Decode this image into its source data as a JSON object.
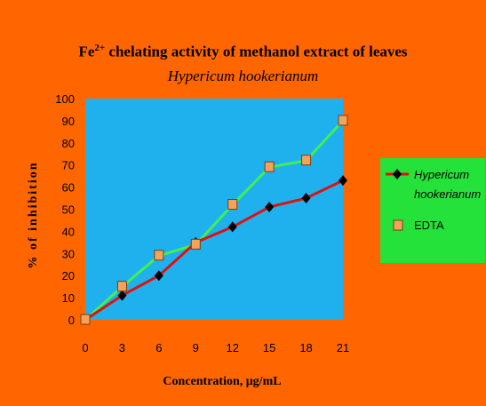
{
  "colors": {
    "outer_background": "#ff6600",
    "plot_background": "#1eb1ee",
    "legend_background": "#24e23a",
    "series_hypericum": "#e01010",
    "series_edta": "#44ee55",
    "marker_hypericum": "#000000",
    "marker_edta_fill": "#f5a35a"
  },
  "chart_data": {
    "type": "line",
    "title_prefix": "Fe",
    "title_superscript": "2+",
    "title_rest": " chelating activity of methanol extract of leaves",
    "subtitle": "Hypericum hookerianum",
    "xlabel": "Concentration, μg/mL",
    "ylabel": "% of inhibition",
    "x": [
      0,
      3,
      6,
      9,
      12,
      15,
      18,
      21
    ],
    "x_tick_labels": [
      "0",
      "3",
      "6",
      "9",
      "12",
      "15",
      "18",
      "21"
    ],
    "ylim": [
      0,
      100
    ],
    "y_tick_labels": [
      "0",
      "10",
      "20",
      "30",
      "40",
      "50",
      "60",
      "70",
      "80",
      "90",
      "100"
    ],
    "grid": false,
    "legend_position": "right",
    "series": [
      {
        "name": "Hypericum hookerianum",
        "name_line1": "Hypericum",
        "name_line2": "hookerianum",
        "marker": "diamond",
        "values": [
          0,
          11,
          20,
          35,
          42,
          51,
          55,
          63
        ]
      },
      {
        "name": "EDTA",
        "marker": "square",
        "values": [
          0,
          15,
          29,
          34,
          52,
          69,
          72,
          90
        ]
      }
    ]
  }
}
